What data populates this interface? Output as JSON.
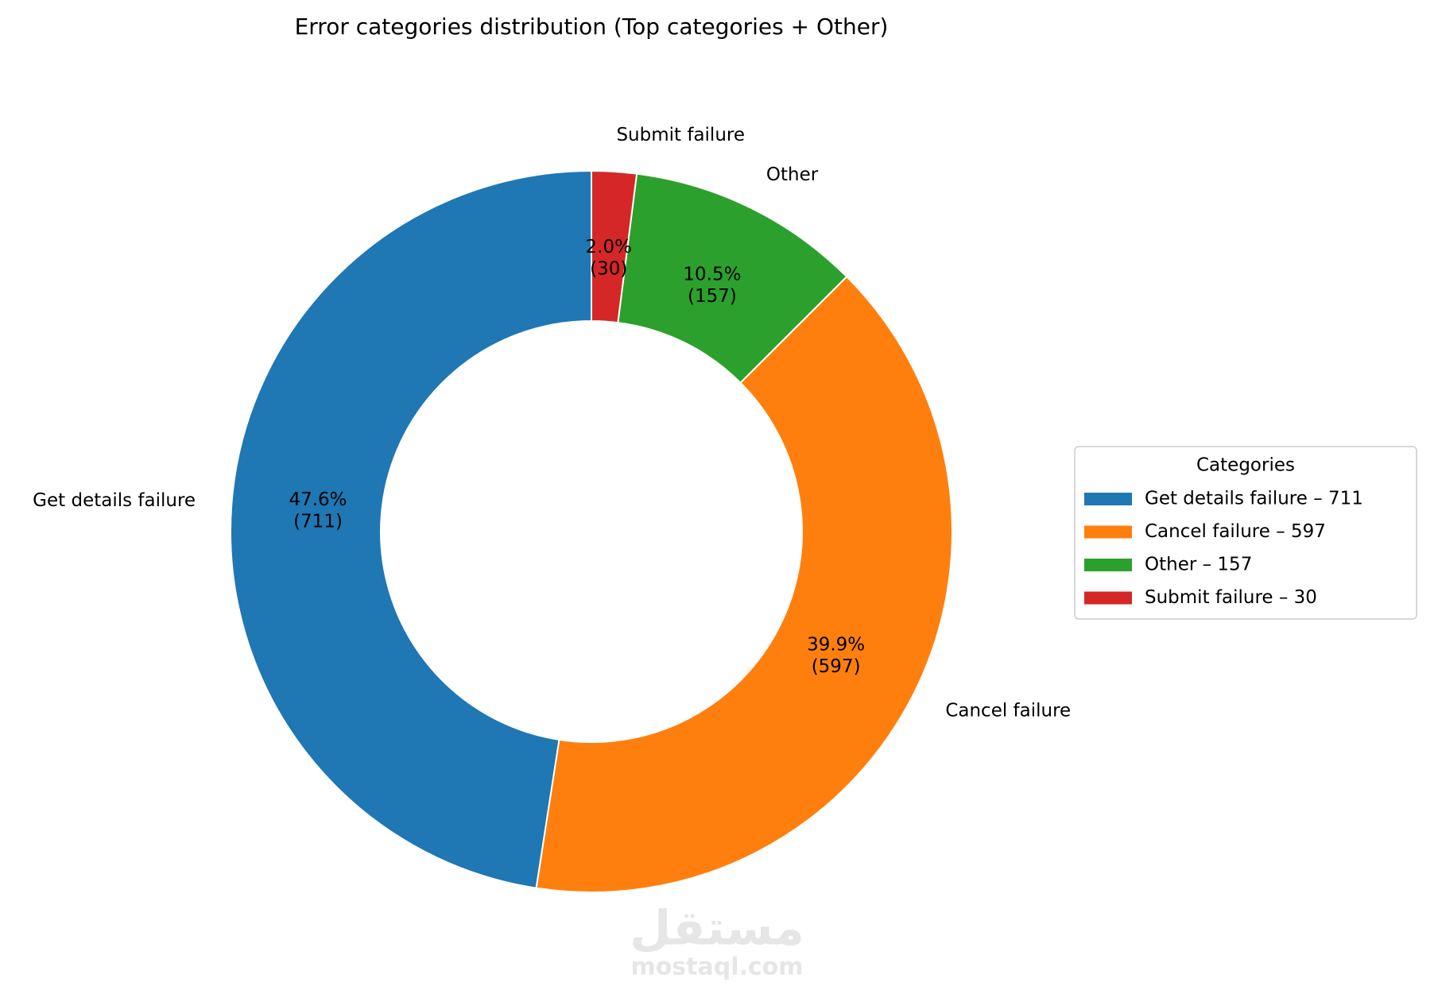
{
  "chart_data": {
    "type": "donut",
    "title": "Error categories distribution (Top categories + Other)",
    "categories": [
      "Get details failure",
      "Cancel failure",
      "Other",
      "Submit failure"
    ],
    "values": [
      711,
      597,
      157,
      30
    ],
    "value_labels": [
      "47.6%\n(711)",
      "39.9%\n(597)",
      "10.5%\n(157)",
      "2.0%\n(30)"
    ],
    "colors": [
      "#1f77b4",
      "#ff7f0e",
      "#2ca02c",
      "#d62728"
    ],
    "legend_title": "Categories",
    "legend_labels": [
      "Get details failure – 711",
      "Cancel failure – 597",
      "Other – 157",
      "Submit failure – 30"
    ],
    "legend_position": "right",
    "start_angle": 90
  },
  "watermark": {
    "logo": "مستقل",
    "site": "mostaql.com"
  }
}
